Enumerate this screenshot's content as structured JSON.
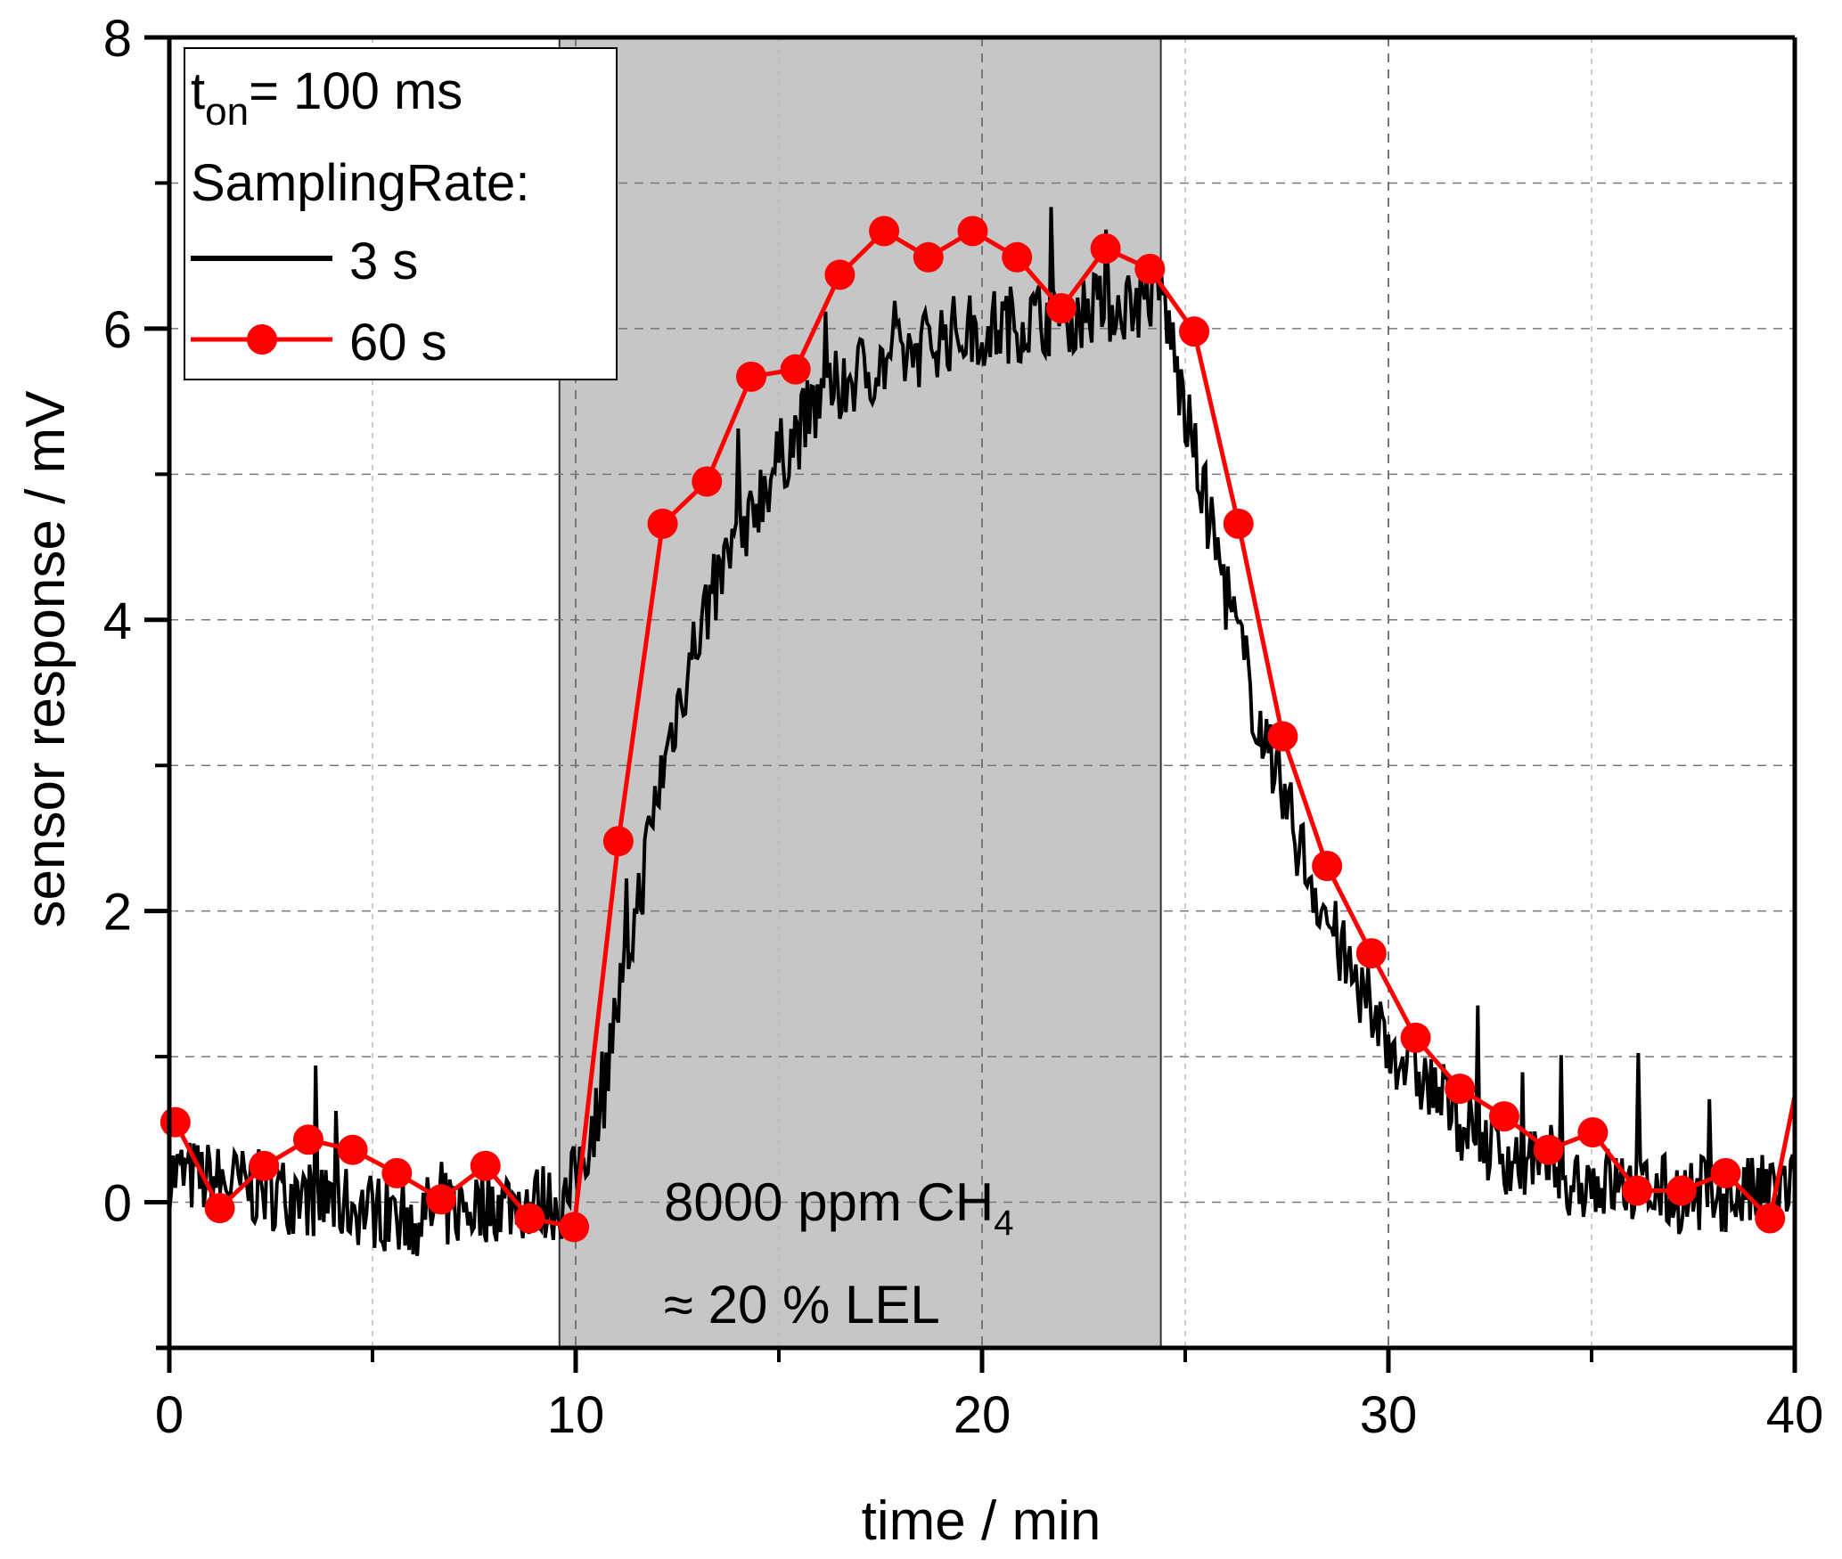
{
  "chart_data": {
    "type": "line",
    "title": "",
    "xlabel": "time / min",
    "ylabel": "sensor response / mV",
    "xlim": [
      0,
      40
    ],
    "ylim": [
      -1,
      8
    ],
    "x_ticks": [
      0,
      10,
      20,
      30,
      40
    ],
    "x_tick_labels": [
      "0",
      "10",
      "20",
      "30",
      "40"
    ],
    "y_ticks": [
      0,
      2,
      4,
      6,
      8
    ],
    "y_tick_labels": [
      "0",
      "2",
      "4",
      "6",
      "8"
    ],
    "grid": true,
    "shaded_region": {
      "x_start": 9.6,
      "x_end": 24.4,
      "color": "#c6c6c6"
    },
    "annotations": [
      {
        "text": "8000 ppm CH",
        "sub": "4"
      },
      {
        "text": "≈ 20 % LEL"
      }
    ],
    "legend": {
      "placement": "top-left",
      "header_line1": "t",
      "header_line1_sub": "on",
      "header_line1_rest": "= 100 ms",
      "header_line2": "SamplingRate:",
      "entries": [
        {
          "label": "3 s",
          "color": "#000000",
          "marker": "none"
        },
        {
          "label": "60 s",
          "color": "#ff0000",
          "marker": "circle"
        }
      ]
    },
    "series": [
      {
        "name": "3 s",
        "color": "#000000",
        "description": "noisy 3 s sampled trace: baseline ~0 until ~9.8 min, rises to ~6.1 plateau at ~17 min, falls after ~24.4 min to ~0.2 by ~33 min",
        "x": [
          0,
          2,
          4,
          6,
          8,
          9.8,
          10.5,
          11,
          11.5,
          12,
          12.5,
          13,
          14,
          15,
          16,
          17,
          18,
          19,
          20,
          21,
          22,
          23,
          24,
          24.4,
          25,
          25.5,
          26,
          27,
          28,
          29,
          30,
          31,
          32,
          33,
          34,
          35,
          36,
          37,
          38,
          39,
          40
        ],
        "y": [
          0.2,
          0.1,
          0.0,
          -0.1,
          0.0,
          0.0,
          0.6,
          1.3,
          2.0,
          2.8,
          3.4,
          3.9,
          4.6,
          5.1,
          5.5,
          5.7,
          5.8,
          5.95,
          6.0,
          6.05,
          6.1,
          6.15,
          6.2,
          6.3,
          5.4,
          4.8,
          4.2,
          3.1,
          2.3,
          1.6,
          1.1,
          0.8,
          0.5,
          0.3,
          0.2,
          0.15,
          0.1,
          0.05,
          0.05,
          0.05,
          0.1
        ]
      },
      {
        "name": "60 s",
        "color": "#ff0000",
        "x": [
          0.15,
          1.24,
          2.33,
          3.42,
          4.51,
          5.6,
          6.69,
          7.78,
          8.87,
          9.96,
          11.05,
          12.14,
          13.23,
          14.32,
          15.41,
          16.5,
          17.59,
          18.68,
          19.77,
          20.86,
          21.95,
          23.04,
          24.13,
          25.22,
          26.31,
          27.4,
          28.49,
          29.58,
          30.67,
          31.76,
          32.85,
          33.94,
          35.03,
          36.12,
          37.21,
          38.3,
          39.39,
          40
        ],
        "y": [
          0.55,
          -0.04,
          0.25,
          0.43,
          0.36,
          0.2,
          0.02,
          0.25,
          -0.11,
          -0.17,
          2.48,
          4.66,
          4.95,
          5.67,
          5.72,
          6.37,
          6.67,
          6.49,
          6.67,
          6.49,
          6.14,
          6.55,
          6.41,
          5.98,
          4.66,
          3.2,
          2.31,
          1.71,
          1.13,
          0.78,
          0.59,
          0.36,
          0.48,
          0.08,
          0.08,
          0.2,
          -0.11,
          0.73
        ]
      }
    ]
  }
}
